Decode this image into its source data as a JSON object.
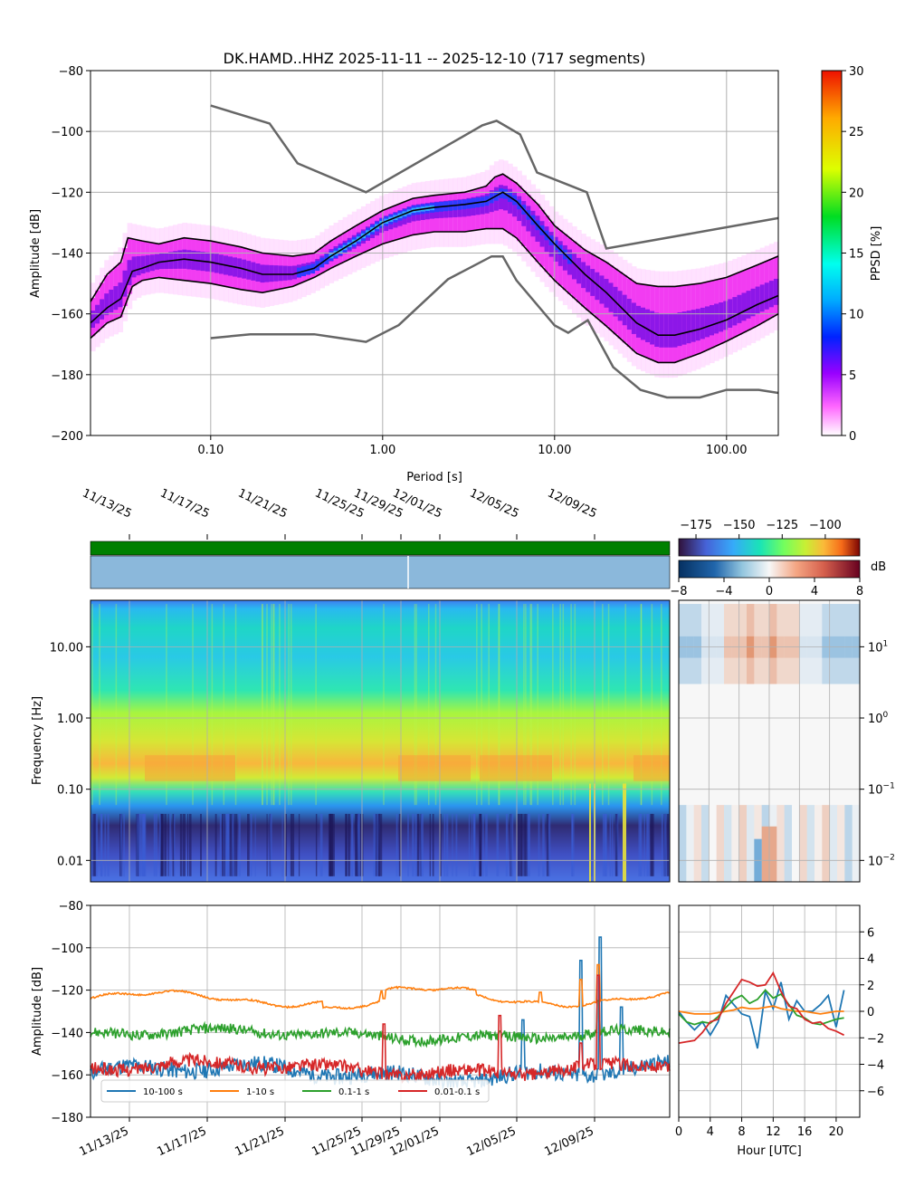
{
  "figure": {
    "title": "DK.HAMD..HHZ   2025-11-11 -- 2025-12-10  (717 segments)"
  },
  "chart_data": [
    {
      "type": "heatmap",
      "name": "ppsd",
      "title": "DK.HAMD..HHZ   2025-11-11 -- 2025-12-10  (717 segments)",
      "xlabel": "Period [s]",
      "ylabel": "Amplitude [dB]",
      "xscale": "log",
      "xlim": [
        0.02,
        200
      ],
      "ylim": [
        -200,
        -80
      ],
      "xticks": [
        0.1,
        1,
        10,
        100
      ],
      "xtick_labels": [
        "0.10",
        "1.00",
        "10.00",
        "100.00"
      ],
      "yticks": [
        -200,
        -180,
        -160,
        -140,
        -120,
        -100,
        -80
      ],
      "colorbar": {
        "label": "PPSD [%]",
        "min": 0,
        "max": 30,
        "ticks": [
          0,
          5,
          10,
          15,
          20,
          25,
          30
        ]
      },
      "percentile_lines": [
        {
          "name": "upper",
          "x": [
            0.02,
            0.025,
            0.03,
            0.033,
            0.04,
            0.05,
            0.07,
            0.1,
            0.15,
            0.2,
            0.3,
            0.4,
            0.5,
            0.7,
            1,
            1.5,
            2,
            3,
            4,
            4.5,
            5,
            6,
            8,
            10,
            15,
            20,
            30,
            40,
            50,
            70,
            100,
            150,
            200
          ],
          "y": [
            -156,
            -147,
            -143,
            -135,
            -136,
            -137,
            -135,
            -136,
            -138,
            -140,
            -141,
            -140,
            -136,
            -131,
            -126,
            -122,
            -121,
            -120,
            -118,
            -115,
            -114,
            -117,
            -124,
            -131,
            -139,
            -143,
            -150,
            -151,
            -151,
            -150,
            -148,
            -144,
            -141
          ]
        },
        {
          "name": "median",
          "x": [
            0.02,
            0.025,
            0.03,
            0.035,
            0.04,
            0.05,
            0.07,
            0.1,
            0.15,
            0.2,
            0.3,
            0.4,
            0.5,
            0.7,
            1,
            1.5,
            2,
            3,
            4,
            5,
            6,
            8,
            10,
            15,
            20,
            30,
            40,
            50,
            70,
            100,
            150,
            200
          ],
          "y": [
            -163,
            -158,
            -155,
            -146,
            -145,
            -143,
            -142,
            -143,
            -145,
            -147,
            -147,
            -145,
            -141,
            -136,
            -130,
            -126,
            -125,
            -124,
            -123,
            -120,
            -123,
            -131,
            -137,
            -147,
            -153,
            -163,
            -167,
            -167,
            -165,
            -162,
            -157,
            -154
          ]
        },
        {
          "name": "lower",
          "x": [
            0.02,
            0.025,
            0.03,
            0.035,
            0.04,
            0.05,
            0.07,
            0.1,
            0.15,
            0.2,
            0.3,
            0.4,
            0.5,
            0.7,
            1,
            1.5,
            2,
            3,
            4,
            5,
            6,
            8,
            10,
            15,
            20,
            30,
            40,
            50,
            70,
            100,
            150,
            200
          ],
          "y": [
            -168,
            -163,
            -161,
            -151,
            -149,
            -148,
            -149,
            -150,
            -152,
            -153,
            -151,
            -148,
            -145,
            -141,
            -137,
            -134,
            -133,
            -133,
            -132,
            -132,
            -135,
            -143,
            -149,
            -158,
            -164,
            -173,
            -176,
            -176,
            -173,
            -169,
            -164,
            -160
          ]
        }
      ],
      "noise_models": [
        {
          "name": "NHNM",
          "x": [
            0.1,
            0.22,
            0.32,
            0.8,
            3.8,
            4.6,
            6.3,
            7.9,
            15.4,
            20,
            200
          ],
          "y": [
            -91.5,
            -97.4,
            -110.5,
            -120,
            -98,
            -96.5,
            -101,
            -113.5,
            -120,
            -138.5,
            -128.5
          ]
        },
        {
          "name": "NLNM",
          "x": [
            0.1,
            0.17,
            0.4,
            0.8,
            1.24,
            2.4,
            4.3,
            5,
            6,
            10,
            12,
            15.6,
            21.9,
            31.6,
            45,
            70,
            100,
            154,
            200
          ],
          "y": [
            -168,
            -166.7,
            -166.7,
            -169.2,
            -163.7,
            -148.6,
            -141.1,
            -141.1,
            -149,
            -163.8,
            -166.2,
            -162.1,
            -177.5,
            -185,
            -187.5,
            -187.5,
            -185,
            -185,
            -186
          ]
        }
      ]
    },
    {
      "type": "heatmap",
      "name": "spectrogram",
      "ylabel": "Frequency [Hz]",
      "yscale": "log",
      "ylim": [
        0.005,
        45
      ],
      "yticks": [
        0.01,
        0.1,
        1,
        10
      ],
      "ytick_labels": [
        "0.01",
        "0.10",
        "1.00",
        "10.00"
      ],
      "xtick_labels": [
        "11/13/25",
        "11/17/25",
        "11/21/25",
        "11/25/25",
        "11/29/25",
        "12/01/25",
        "12/05/25",
        "12/09/25"
      ],
      "colorbar": {
        "ticks": [
          -175,
          -150,
          -125,
          -100
        ]
      }
    },
    {
      "type": "heatmap",
      "name": "diurnal",
      "yscale": "log",
      "ytick_labels": [
        "10^1",
        "10^0",
        "10^-1",
        "10^-2"
      ],
      "colorbar": {
        "label": "dB",
        "ticks": [
          -8,
          -4,
          0,
          4,
          8
        ]
      }
    },
    {
      "type": "line",
      "name": "band_timeseries",
      "ylabel": "Amplitude [dB]",
      "ylim": [
        -180,
        -80
      ],
      "yticks": [
        -180,
        -160,
        -140,
        -120,
        -100,
        -80
      ],
      "xtick_labels": [
        "11/13/25",
        "11/17/25",
        "11/21/25",
        "11/25/25",
        "11/29/25",
        "12/01/25",
        "12/05/25",
        "12/09/25"
      ],
      "series": [
        {
          "name": "10-100 s",
          "color": "#1f77b4",
          "base": -159,
          "amp": 3.5,
          "spikes": [
            [
              26.4,
              -95
            ],
            [
              25.4,
              -106
            ],
            [
              22.4,
              -134
            ],
            [
              27.5,
              -128
            ]
          ]
        },
        {
          "name": "1-10 s",
          "color": "#ff7f0e",
          "base": -124,
          "amp": 1.2,
          "spikes": [
            [
              23.3,
              -121
            ],
            [
              25.4,
              -115
            ],
            [
              26.3,
              -108
            ],
            [
              15.2,
              -124
            ]
          ]
        },
        {
          "name": "0.1-1 s",
          "color": "#2ca02c",
          "base": -141,
          "amp": 2.2,
          "spikes": [
            [
              26.3,
              -125
            ]
          ]
        },
        {
          "name": "0.01-0.1 s",
          "color": "#d62728",
          "base": -157,
          "amp": 2.8,
          "spikes": [
            [
              26.3,
              -113
            ],
            [
              15.2,
              -136
            ],
            [
              21.2,
              -132
            ],
            [
              25.4,
              -145
            ]
          ]
        }
      ],
      "legend": {
        "location": "lower-left"
      }
    },
    {
      "type": "line",
      "name": "diurnal_bands",
      "xlabel": "Hour [UTC]",
      "xlim": [
        0,
        23
      ],
      "xticks": [
        0,
        4,
        8,
        12,
        16,
        20
      ],
      "ylim": [
        -8,
        8
      ],
      "yticks": [
        -6,
        -4,
        -2,
        0,
        2,
        4,
        6
      ],
      "series": [
        {
          "name": "10-100 s",
          "color": "#1f77b4",
          "values": [
            0,
            -0.8,
            -1.4,
            -0.8,
            -1.8,
            -0.8,
            1.2,
            0.5,
            -0.2,
            -0.4,
            -2.8,
            1.5,
            0.2,
            2.2,
            -0.6,
            0.8,
            0,
            0,
            0.5,
            1.2,
            -1.2,
            1.6
          ]
        },
        {
          "name": "1-10 s",
          "color": "#ff7f0e",
          "values": [
            0,
            -0.1,
            -0.2,
            -0.2,
            -0.2,
            -0.1,
            0,
            0.1,
            0.3,
            0.2,
            0.2,
            0.3,
            0.4,
            0.2,
            0.1,
            0,
            0,
            -0.1,
            -0.2,
            -0.1,
            0,
            0
          ]
        },
        {
          "name": "0.1-1 s",
          "color": "#2ca02c",
          "values": [
            -0.2,
            -0.8,
            -1.0,
            -0.8,
            -0.9,
            -0.4,
            0.3,
            0.9,
            1.2,
            0.6,
            0.9,
            1.6,
            1.0,
            1.3,
            0.5,
            -0.3,
            -0.5,
            -0.9,
            -1.0,
            -0.8,
            -0.6,
            -0.5
          ]
        },
        {
          "name": "0.01-0.1 s",
          "color": "#d62728",
          "values": [
            -2.4,
            -2.3,
            -2.2,
            -1.6,
            -0.8,
            -0.6,
            0.6,
            1.5,
            2.4,
            2.2,
            1.9,
            2.0,
            2.9,
            1.5,
            0.4,
            0.2,
            -0.6,
            -0.9,
            -0.8,
            -1.3,
            -1.5,
            -1.8
          ]
        }
      ]
    }
  ]
}
